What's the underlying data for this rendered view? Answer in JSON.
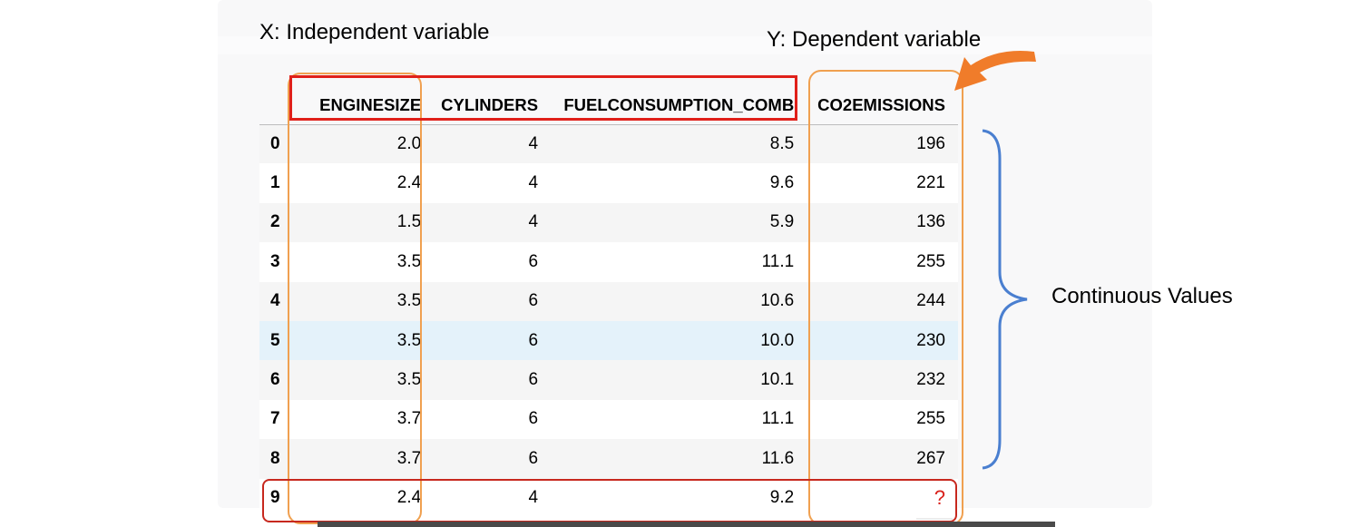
{
  "annotations": {
    "x_label": "X: Independent variable",
    "y_label": "Y: Dependent variable",
    "continuous_label": "Continuous Values"
  },
  "table": {
    "columns": [
      "",
      "ENGINESIZE",
      "CYLINDERS",
      "FUELCONSUMPTION_COMB",
      "CO2EMISSIONS"
    ],
    "rows": [
      {
        "index": "0",
        "enginesize": "2.0",
        "cylinders": "4",
        "fuel": "8.5",
        "co2": "196"
      },
      {
        "index": "1",
        "enginesize": "2.4",
        "cylinders": "4",
        "fuel": "9.6",
        "co2": "221"
      },
      {
        "index": "2",
        "enginesize": "1.5",
        "cylinders": "4",
        "fuel": "5.9",
        "co2": "136"
      },
      {
        "index": "3",
        "enginesize": "3.5",
        "cylinders": "6",
        "fuel": "11.1",
        "co2": "255"
      },
      {
        "index": "4",
        "enginesize": "3.5",
        "cylinders": "6",
        "fuel": "10.6",
        "co2": "244"
      },
      {
        "index": "5",
        "enginesize": "3.5",
        "cylinders": "6",
        "fuel": "10.0",
        "co2": "230"
      },
      {
        "index": "6",
        "enginesize": "3.5",
        "cylinders": "6",
        "fuel": "10.1",
        "co2": "232"
      },
      {
        "index": "7",
        "enginesize": "3.7",
        "cylinders": "6",
        "fuel": "11.1",
        "co2": "255"
      },
      {
        "index": "8",
        "enginesize": "3.7",
        "cylinders": "6",
        "fuel": "11.6",
        "co2": "267"
      },
      {
        "index": "9",
        "enginesize": "2.4",
        "cylinders": "4",
        "fuel": "9.2",
        "co2": "?"
      }
    ],
    "highlighted_row_index": "5"
  },
  "colors": {
    "orange_box": "#f0a050",
    "red_box": "#e0201a",
    "arrow": "#f07c2a",
    "brace": "#4a7fd0",
    "highlight_row": "#e4f2fa",
    "question_mark": "#d9201a"
  }
}
